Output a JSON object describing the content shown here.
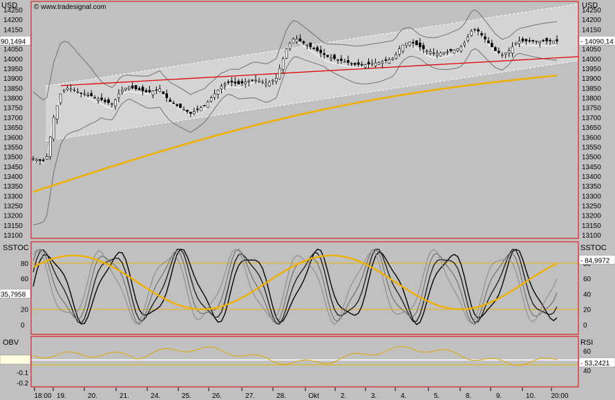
{
  "header": {
    "currency_left": "USD",
    "currency_right": "USD",
    "copyright": "© www.tradesignal.com"
  },
  "chart_data": [
    {
      "type": "candlestick",
      "panel": "price",
      "ylim": [
        13100,
        14250
      ],
      "yticks": [
        14250,
        14200,
        14150,
        14100,
        14050,
        14000,
        13950,
        13900,
        13850,
        13800,
        13750,
        13700,
        13650,
        13600,
        13550,
        13500,
        13450,
        13400,
        13350,
        13300,
        13250,
        13200,
        13150,
        13100
      ],
      "last_value_left": "90,1494",
      "last_value_right": "14090,14",
      "series": [
        {
          "name": "close",
          "x": [
            0,
            1,
            2,
            3,
            4,
            5,
            6,
            7,
            8,
            9,
            10,
            11,
            12,
            13,
            14,
            15,
            16,
            17,
            18,
            19,
            20,
            21,
            22,
            23,
            24,
            25,
            26,
            27,
            28,
            29,
            30,
            31,
            32,
            33,
            34,
            35,
            36,
            37,
            38,
            39,
            40,
            41,
            42,
            43,
            44,
            45,
            46,
            47,
            48,
            49,
            50,
            51,
            52,
            53,
            54,
            55,
            56,
            57,
            58,
            59,
            60,
            61,
            62,
            63,
            64,
            65,
            66,
            67,
            68,
            69,
            70,
            71,
            72,
            73,
            74,
            75,
            76,
            77,
            78,
            79,
            80,
            81,
            82,
            83,
            84,
            85,
            86,
            87,
            88,
            89,
            90,
            91,
            92,
            93,
            94,
            95,
            96,
            97,
            98,
            99,
            100,
            101,
            102,
            103,
            104,
            105,
            106,
            107,
            108,
            109,
            110,
            111,
            112,
            113,
            114,
            115,
            116,
            117,
            118,
            119,
            120,
            121,
            122,
            123,
            124,
            125,
            126,
            127,
            128,
            129,
            130,
            131,
            132,
            133,
            134,
            135,
            136,
            137,
            138,
            139,
            140,
            141,
            142,
            143,
            144,
            145,
            146,
            147,
            148,
            149,
            150,
            151,
            152,
            153,
            154,
            155,
            156,
            157,
            158,
            159,
            160,
            161,
            162,
            163,
            164,
            165,
            166,
            167,
            168,
            169,
            170,
            171,
            172,
            173,
            174,
            175,
            176,
            177,
            178,
            179,
            180,
            181,
            182,
            183,
            184,
            185,
            186,
            187,
            188,
            189,
            190,
            191,
            192,
            193,
            194,
            195,
            196,
            197,
            198,
            199
          ],
          "values": [
            13490,
            13485,
            13480,
            13478,
            13500,
            13600,
            13700,
            13760,
            13820,
            13840,
            13850,
            13845,
            13840,
            13830,
            13825,
            13820,
            13815,
            13810,
            13800,
            13795,
            13790,
            13780,
            13775,
            13770,
            13790,
            13820,
            13840,
            13850,
            13855,
            13850,
            13845,
            13840,
            13835,
            13830,
            13830,
            13835,
            13840,
            13845,
            13820,
            13800,
            13780,
            13770,
            13760,
            13750,
            13740,
            13730,
            13720,
            13730,
            13740,
            13750,
            13760,
            13780,
            13800,
            13820,
            13840,
            13860,
            13870,
            13880,
            13880,
            13875,
            13870,
            13875,
            13880,
            13885,
            13890,
            13890,
            13885,
            13880,
            13875,
            13880,
            13890,
            13900,
            13950,
            14000,
            14050,
            14080,
            14100,
            14100,
            14090,
            14080,
            14070,
            14060,
            14050,
            14040,
            14030,
            14020,
            14010,
            14005,
            14000,
            13995,
            13990,
            13985,
            13980,
            13975,
            13970,
            13970,
            13968,
            13970,
            13972,
            13975,
            13978,
            13980,
            13985,
            13990,
            13995,
            14000,
            14020,
            14050,
            14070,
            14080,
            14085,
            14080,
            14070,
            14060,
            14050,
            14040,
            14035,
            14030,
            14028,
            14030,
            14032,
            14035,
            14040,
            14045,
            14050,
            14060,
            14080,
            14110,
            14140,
            14150,
            14140,
            14120,
            14100,
            14080,
            14060,
            14040,
            14030,
            14020,
            14030,
            14040,
            14060,
            14080,
            14090,
            14090,
            14090,
            14090,
            14090,
            14090,
            14090,
            14090,
            14090,
            14090,
            14090,
            14090,
            14090,
            14090,
            14090,
            14090,
            14090,
            14090,
            14090,
            14090,
            14090,
            14090,
            14090,
            14090,
            14090,
            14090,
            14090,
            14090,
            14090,
            14090,
            14090,
            14090,
            14090,
            14090,
            14090,
            14090,
            14090,
            14090,
            14090,
            14090,
            14090,
            14090,
            14090,
            14090,
            14090,
            14090,
            14090,
            14090,
            14090,
            14090,
            14090,
            14090,
            14090,
            14090,
            14090,
            14090,
            14090,
            14090
          ]
        }
      ]
    },
    {
      "type": "line",
      "panel": "SSTOC",
      "title_left": "SSTOC",
      "title_right": "SSTOC",
      "ylim": [
        -5,
        100
      ],
      "yticks": [
        80,
        60,
        40,
        20,
        0
      ],
      "last_value_left": "35,7958",
      "last_value_right": "84,9972",
      "levels": [
        80,
        20
      ]
    },
    {
      "type": "line",
      "panel": "OBV_RSI",
      "title_left": "OBV",
      "title_right": "RSI",
      "yticks_left": [
        "0",
        "-0.1",
        "-0.2"
      ],
      "yticks_right": [
        "60",
        "40"
      ],
      "last_value_right": "53,2421"
    }
  ],
  "xaxis": {
    "labels": [
      "18:00",
      "19.",
      "20.",
      "21.",
      "24.",
      "25.",
      "26.",
      "27.",
      "28.",
      "Okt",
      "2.",
      "3.",
      "4.",
      "5.",
      "8.",
      "9.",
      "10.",
      "20:00"
    ]
  },
  "colors": {
    "background": "#c0c0c0",
    "channel_fill": "#d4d4d4",
    "trend_line": "#e00000",
    "moving_average": "#f0b000",
    "stoch_level": "#e8b400",
    "panel_border": "#e00000"
  }
}
